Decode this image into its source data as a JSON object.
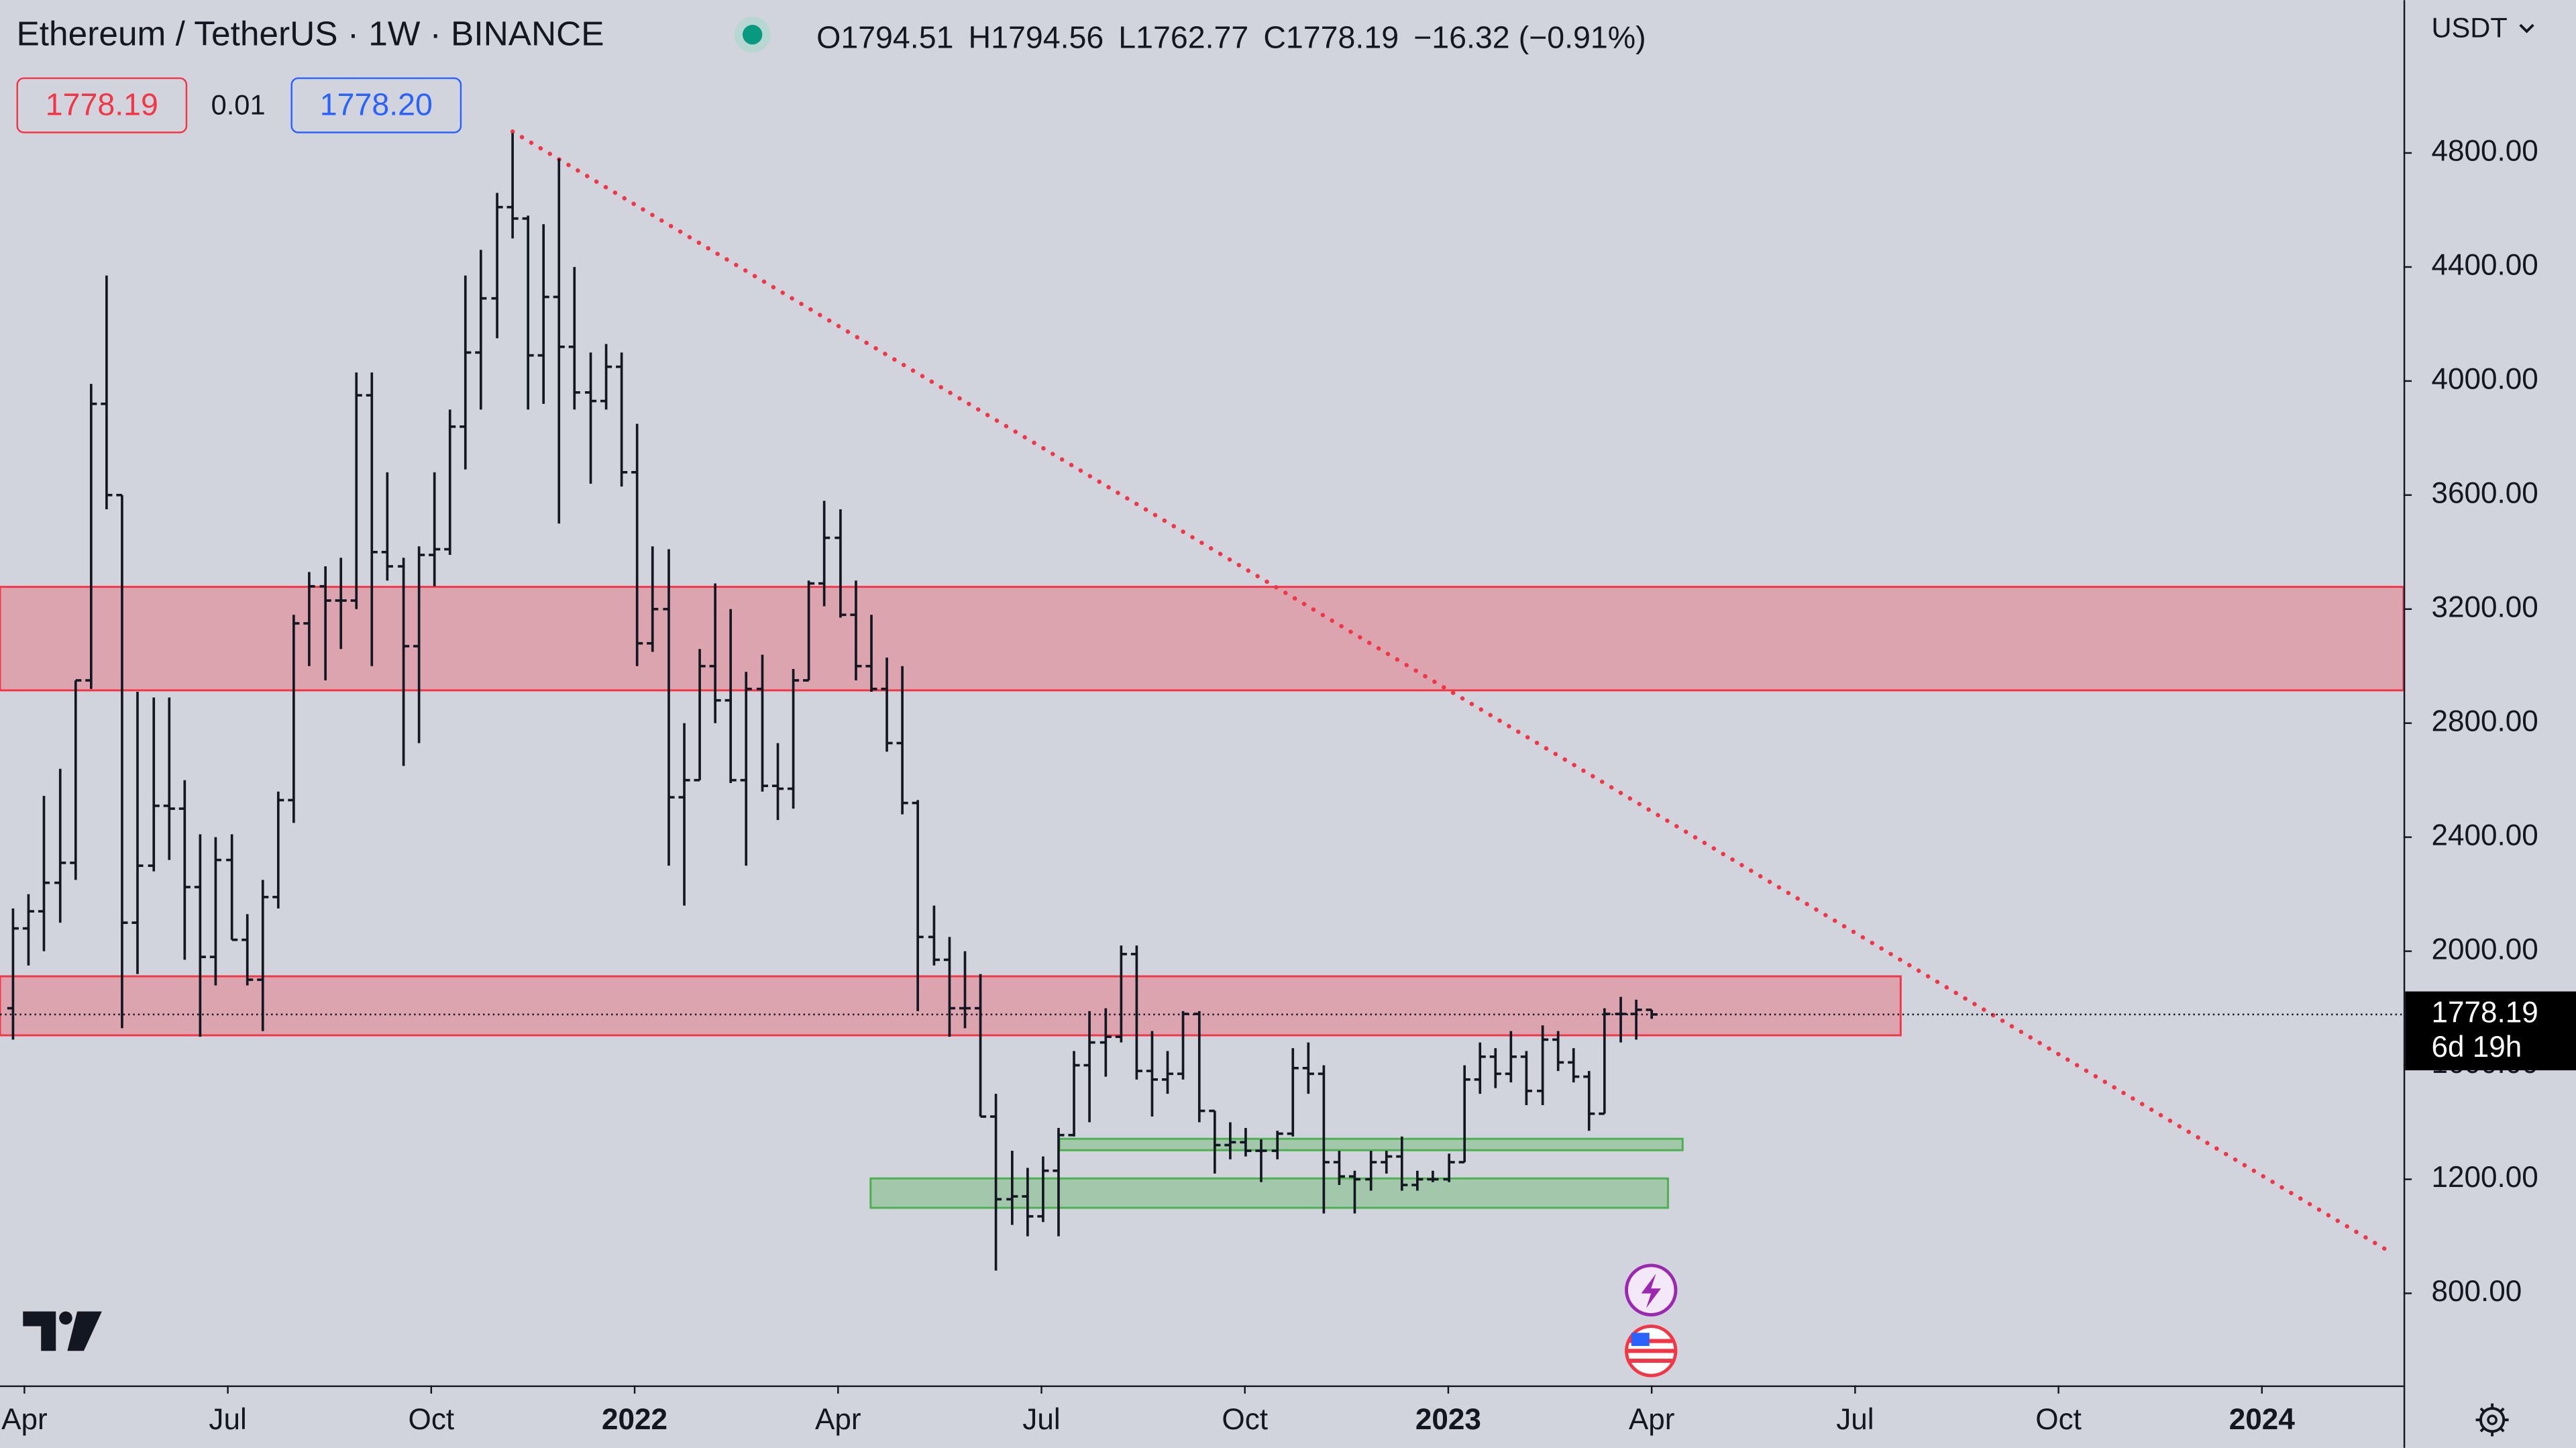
{
  "chart_data": {
    "type": "ohlc",
    "title": "Ethereum / TetherUS · 1W · BINANCE",
    "legend_values": [
      "O1794.51",
      "H1794.56",
      "L1762.77",
      "C1778.19",
      "−16.32 (−0.91%)"
    ],
    "order_boxes": [
      "1778.19",
      "0.01",
      "1778.20"
    ],
    "currency": "USDT",
    "last_price": 1778.19,
    "countdown": "6d 19h",
    "color": "#131722",
    "x": [
      2021.236,
      2021.255,
      2021.274,
      2021.294,
      2021.313,
      2021.332,
      2021.351,
      2021.37,
      2021.389,
      2021.409,
      2021.428,
      2021.447,
      2021.466,
      2021.485,
      2021.505,
      2021.524,
      2021.543,
      2021.562,
      2021.581,
      2021.6,
      2021.62,
      2021.639,
      2021.658,
      2021.677,
      2021.696,
      2021.716,
      2021.735,
      2021.754,
      2021.773,
      2021.792,
      2021.811,
      2021.831,
      2021.85,
      2021.869,
      2021.888,
      2021.907,
      2021.926,
      2021.946,
      2021.965,
      2021.984,
      2022.003,
      2022.022,
      2022.042,
      2022.061,
      2022.08,
      2022.099,
      2022.118,
      2022.137,
      2022.157,
      2022.176,
      2022.195,
      2022.214,
      2022.233,
      2022.253,
      2022.272,
      2022.291,
      2022.31,
      2022.329,
      2022.348,
      2022.368,
      2022.387,
      2022.406,
      2022.425,
      2022.444,
      2022.464,
      2022.483,
      2022.502,
      2022.521,
      2022.54,
      2022.559,
      2022.579,
      2022.598,
      2022.617,
      2022.636,
      2022.655,
      2022.674,
      2022.694,
      2022.713,
      2022.732,
      2022.751,
      2022.77,
      2022.79,
      2022.809,
      2022.828,
      2022.847,
      2022.866,
      2022.885,
      2022.905,
      2022.924,
      2022.943,
      2022.962,
      2022.981,
      2023.001,
      2023.02,
      2023.039,
      2023.058,
      2023.077,
      2023.096,
      2023.116,
      2023.135,
      2023.154,
      2023.173,
      2023.192,
      2023.212,
      2023.231,
      2023.25
    ],
    "open": [
      1800,
      2080,
      2140,
      2240,
      2310,
      2950,
      3920,
      3600,
      2100,
      2300,
      2510,
      2500,
      2225,
      1980,
      2320,
      2040,
      1900,
      2190,
      2530,
      3150,
      3280,
      3230,
      3230,
      3950,
      3400,
      3350,
      3070,
      3390,
      3410,
      3840,
      4100,
      4290,
      4610,
      4570,
      4090,
      4295,
      4120,
      3960,
      3930,
      4050,
      3680,
      3080,
      3200,
      2540,
      2600,
      3000,
      2880,
      2600,
      2920,
      2580,
      2570,
      2950,
      3290,
      3450,
      3180,
      3000,
      2920,
      2730,
      2520,
      2050,
      1970,
      1800,
      1800,
      1420,
      1130,
      1140,
      1070,
      1230,
      1355,
      1600,
      1680,
      1700,
      1990,
      1580,
      1550,
      1570,
      1780,
      1440,
      1320,
      1330,
      1300,
      1300,
      1360,
      1590,
      1570,
      1260,
      1210,
      1200,
      1260,
      1280,
      1180,
      1200,
      1200,
      1260,
      1550,
      1630,
      1570,
      1630,
      1510,
      1690,
      1610,
      1560,
      1430,
      1780,
      1780,
      1794.51
    ],
    "high": [
      2150,
      2200,
      2545,
      2640,
      2950,
      3990,
      4370,
      3600,
      2910,
      2890,
      2890,
      2600,
      2410,
      2400,
      2410,
      2130,
      2250,
      2560,
      3180,
      3330,
      3350,
      3380,
      4030,
      4030,
      3680,
      3380,
      3420,
      3680,
      3900,
      4370,
      4460,
      4660,
      4870,
      4580,
      4550,
      4780,
      4400,
      4100,
      4130,
      4100,
      3850,
      3420,
      3410,
      2800,
      3060,
      3290,
      3200,
      2980,
      3040,
      2730,
      2990,
      3300,
      3580,
      3550,
      3300,
      3180,
      3030,
      3000,
      2530,
      2160,
      2050,
      2000,
      1920,
      1500,
      1300,
      1240,
      1280,
      1380,
      1650,
      1790,
      1800,
      2020,
      2020,
      1720,
      1650,
      1790,
      1790,
      1440,
      1400,
      1380,
      1340,
      1370,
      1660,
      1680,
      1600,
      1300,
      1230,
      1300,
      1300,
      1350,
      1230,
      1230,
      1290,
      1600,
      1680,
      1660,
      1720,
      1650,
      1740,
      1720,
      1660,
      1580,
      1800,
      1840,
      1830,
      1794.56
    ],
    "low": [
      1690,
      1950,
      2000,
      2100,
      2250,
      2920,
      3550,
      1730,
      1920,
      2280,
      2320,
      1970,
      1700,
      1880,
      2040,
      1880,
      1720,
      2150,
      2450,
      3000,
      2950,
      3060,
      3200,
      3000,
      3300,
      2650,
      2730,
      3280,
      3390,
      3690,
      3900,
      4150,
      4500,
      3900,
      3920,
      3500,
      3900,
      3640,
      3900,
      3630,
      3000,
      3050,
      2300,
      2160,
      2600,
      2800,
      2590,
      2300,
      2560,
      2460,
      2500,
      2950,
      3210,
      3170,
      2950,
      2910,
      2700,
      2480,
      1790,
      1950,
      1700,
      1730,
      1420,
      880,
      1040,
      1000,
      1050,
      1000,
      1350,
      1400,
      1560,
      1680,
      1550,
      1420,
      1500,
      1550,
      1400,
      1220,
      1270,
      1280,
      1190,
      1270,
      1350,
      1500,
      1080,
      1180,
      1080,
      1160,
      1220,
      1160,
      1160,
      1190,
      1190,
      1260,
      1500,
      1520,
      1540,
      1460,
      1460,
      1580,
      1540,
      1370,
      1430,
      1680,
      1690,
      1762.77
    ],
    "close": [
      2080,
      2140,
      2240,
      2310,
      2950,
      3920,
      3600,
      2100,
      2300,
      2510,
      2500,
      2225,
      1980,
      2320,
      2040,
      1900,
      2190,
      2530,
      3150,
      3280,
      3230,
      3230,
      3950,
      3400,
      3350,
      3070,
      3390,
      3410,
      3840,
      4100,
      4290,
      4610,
      4570,
      4090,
      4295,
      4120,
      3960,
      3930,
      4050,
      3680,
      3080,
      3200,
      2540,
      2600,
      3000,
      2880,
      2600,
      2920,
      2580,
      2570,
      2950,
      3290,
      3450,
      3180,
      3000,
      2920,
      2730,
      2520,
      2050,
      1970,
      1800,
      1800,
      1420,
      1130,
      1140,
      1070,
      1230,
      1355,
      1600,
      1680,
      1700,
      1990,
      1580,
      1550,
      1570,
      1780,
      1440,
      1320,
      1330,
      1300,
      1300,
      1360,
      1590,
      1570,
      1260,
      1210,
      1200,
      1260,
      1280,
      1180,
      1200,
      1200,
      1260,
      1550,
      1630,
      1570,
      1630,
      1510,
      1690,
      1610,
      1560,
      1430,
      1780,
      1780,
      1794.51,
      1778.19
    ],
    "zones": [
      {
        "low": 2915,
        "high": 3278,
        "x": [
          2021.22,
          2024.174
        ],
        "color": "#f23645"
      },
      {
        "low": 1705,
        "high": 1912,
        "x": [
          2021.22,
          2023.556
        ],
        "color": "#f23645"
      },
      {
        "low": 1302,
        "high": 1342,
        "x": [
          2022.522,
          2023.288
        ],
        "color": "#4caf50"
      },
      {
        "low": 1100,
        "high": 1203,
        "x": [
          2022.29,
          2023.27
        ],
        "color": "#4caf50"
      }
    ],
    "trend_line": {
      "x": [
        2021.85,
        2024.158
      ],
      "y": [
        4875,
        944
      ],
      "color": "#f23645"
    },
    "xlim": [
      2021.22,
      2024.174
    ],
    "xticks": [
      {
        "value": 2021.25,
        "label": "Apr"
      },
      {
        "value": 2021.5,
        "label": "Jul"
      },
      {
        "value": 2021.75,
        "label": "Oct"
      },
      2022,
      {
        "value": 2022.25,
        "label": "Apr"
      },
      {
        "value": 2022.5,
        "label": "Jul"
      },
      {
        "value": 2022.75,
        "label": "Oct"
      },
      2023,
      {
        "value": 2023.25,
        "label": "Apr"
      },
      {
        "value": 2023.5,
        "label": "Jul"
      },
      {
        "value": 2023.75,
        "label": "Oct"
      },
      2024
    ],
    "ylim": [
      477,
      5336
    ],
    "yticks": [
      {
        "value": 800,
        "label": "800.00"
      },
      {
        "value": 1200,
        "label": "1200.00"
      },
      {
        "value": 1600,
        "label": "1600.00"
      },
      {
        "value": 2000,
        "label": "2000.00"
      },
      {
        "value": 2400,
        "label": "2400.00"
      },
      {
        "value": 2800,
        "label": "2800.00"
      },
      {
        "value": 3200,
        "label": "3200.00"
      },
      {
        "value": 3600,
        "label": "3600.00"
      },
      {
        "value": 4000,
        "label": "4000.00"
      },
      {
        "value": 4400,
        "label": "4400.00"
      },
      {
        "value": 4800,
        "label": "4800.00"
      }
    ]
  }
}
